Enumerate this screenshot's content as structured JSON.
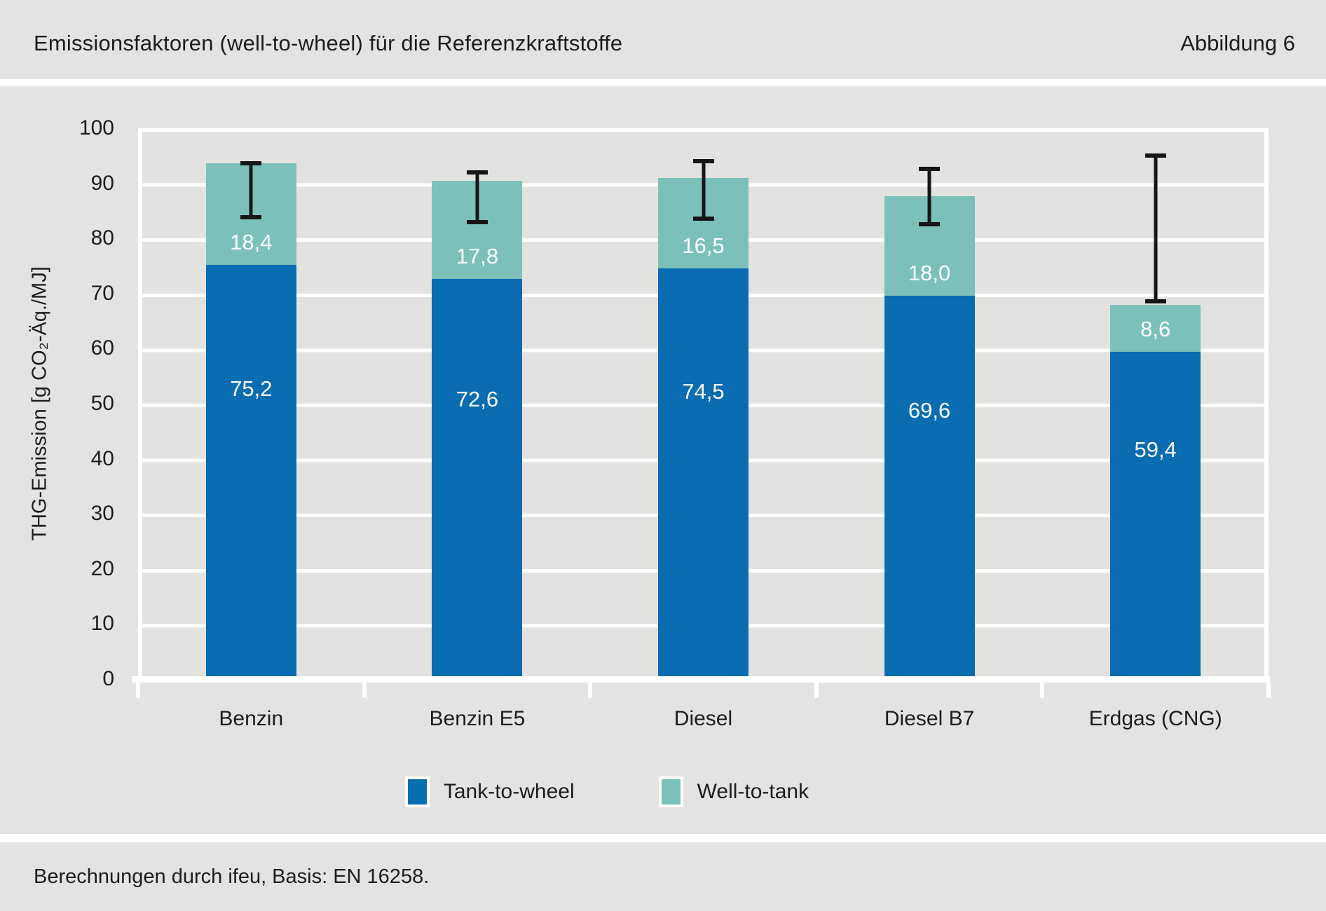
{
  "header": {
    "title": "Emissionsfaktoren (well-to-wheel) für die Referenzkraftstoffe",
    "figure_label": "Abbildung 6"
  },
  "footer": {
    "source": "Berechnungen durch ifeu, Basis: EN 16258."
  },
  "colors": {
    "tank_to_wheel": "#0a6cb1",
    "well_to_tank": "#7cc0ba",
    "background": "#e3e4df",
    "gridline": "#ffffff",
    "error_bar": "#161616",
    "bar_label_text": "#ffffff"
  },
  "chart_data": {
    "type": "bar",
    "stacked": true,
    "title": "Emissionsfaktoren (well-to-wheel) für die Referenzkraftstoffe",
    "categories": [
      "Benzin",
      "Benzin E5",
      "Diesel",
      "Diesel B7",
      "Erdgas (CNG)"
    ],
    "series": [
      {
        "name": "Tank-to-wheel",
        "color_key": "tank_to_wheel",
        "values": [
          75.2,
          72.6,
          74.5,
          69.6,
          59.4
        ],
        "labels": [
          "75,2",
          "72,6",
          "74,5",
          "69,6",
          "59,4"
        ]
      },
      {
        "name": "Well-to-tank",
        "color_key": "well_to_tank",
        "values": [
          18.4,
          17.8,
          16.5,
          18.0,
          8.6
        ],
        "labels": [
          "18,4",
          "17,8",
          "16,5",
          "18,0",
          "8,6"
        ]
      }
    ],
    "totals": [
      93.6,
      90.4,
      91.0,
      87.6,
      68.0
    ],
    "error_bars": [
      {
        "high": 94.0,
        "low": 83.5
      },
      {
        "high": 92.4,
        "low": 82.6
      },
      {
        "high": 94.4,
        "low": 83.2
      },
      {
        "high": 93.0,
        "low": 82.2
      },
      {
        "high": 95.4,
        "low": 68.2
      }
    ],
    "ylabel": "THG-Emission [g CO₂-Äq./MJ]",
    "ylim": [
      0,
      100
    ],
    "yticks": [
      0,
      10,
      20,
      30,
      40,
      50,
      60,
      70,
      80,
      90,
      100
    ],
    "grid": "horizontal-white-stripes",
    "legend_position": "bottom"
  }
}
